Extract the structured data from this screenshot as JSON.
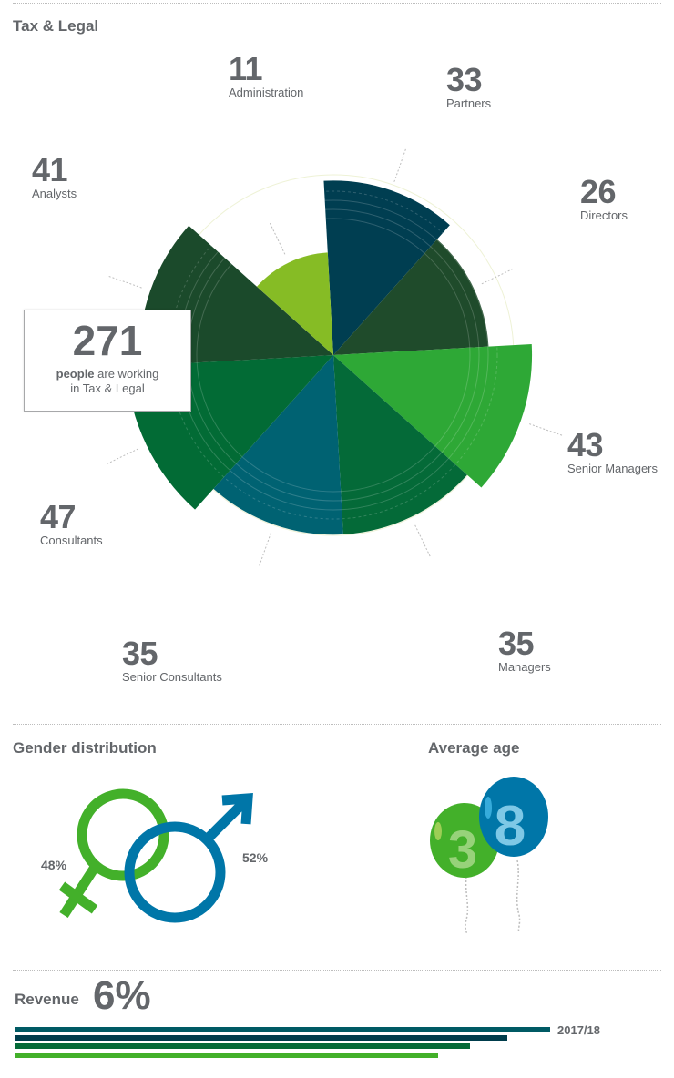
{
  "sections": {
    "tax_legal": "Tax & Legal",
    "gender": "Gender distribution",
    "age": "Average age",
    "revenue": "Revenue"
  },
  "total": {
    "number": "271",
    "bold_text": "people",
    "text1": " are working",
    "text2": "in Tax & Legal"
  },
  "chart_data": {
    "type": "pie",
    "title": "",
    "categories": [
      "Partners",
      "Directors",
      "Senior Managers",
      "Managers",
      "Senior Consultants",
      "Consultants",
      "Analysts",
      "Administration"
    ],
    "values": [
      33,
      26,
      43,
      35,
      35,
      47,
      41,
      11
    ],
    "colors": [
      "#003e51",
      "#1f4b2b",
      "#2ea836",
      "#046a38",
      "#006272",
      "#026b35",
      "#1b4a2b",
      "#86bc25"
    ],
    "labels": [
      {
        "number": "33",
        "name": "Partners"
      },
      {
        "number": "26",
        "name": "Directors"
      },
      {
        "number": "43",
        "name": "Senior Managers"
      },
      {
        "number": "35",
        "name": "Managers"
      },
      {
        "number": "35",
        "name": "Senior Consultants"
      },
      {
        "number": "47",
        "name": "Consultants"
      },
      {
        "number": "41",
        "name": "Analysts"
      },
      {
        "number": "11",
        "name": "Administration"
      }
    ]
  },
  "gender_data": {
    "female_pct": "48%",
    "male_pct": "52%",
    "female_color": "#43b02a",
    "male_color": "#0076a8"
  },
  "age_data": {
    "digit1": "3",
    "digit2": "8",
    "balloon1_color": "#43b02a",
    "balloon2_color": "#0076a8"
  },
  "revenue_data": {
    "percent": "6%",
    "year": "2017/18",
    "bar_colors": [
      "#005a64",
      "#003d4c",
      "#046a38",
      "#43b02a"
    ],
    "bar_values": [
      1.0,
      0.92,
      0.85,
      0.79
    ]
  }
}
